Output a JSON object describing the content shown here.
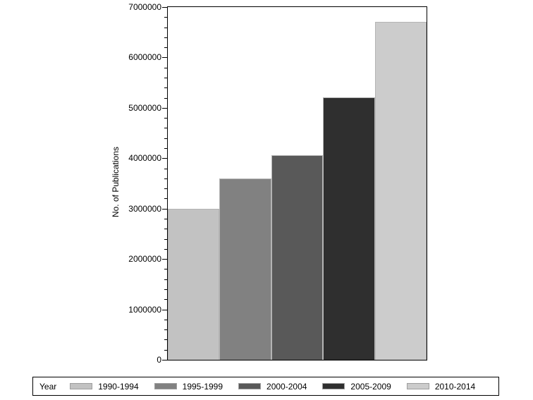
{
  "chart_data": {
    "type": "bar",
    "title": "",
    "xlabel": "",
    "ylabel": "No. of Publications",
    "categories": [
      "1990-1994",
      "1995-1999",
      "2000-2004",
      "2005-2009",
      "2010-2014"
    ],
    "values": [
      3000000,
      3600000,
      4060000,
      5210000,
      6710000
    ],
    "ylim": [
      0,
      7000000
    ],
    "y_major_step": 1000000,
    "y_minor_step": 200000,
    "y_tick_labels": [
      "0",
      "1000000",
      "2000000",
      "3000000",
      "4000000",
      "5000000",
      "6000000",
      "7000000"
    ],
    "grid": false,
    "legend_position": "bottom",
    "legend_title": "Year",
    "bar_colors": [
      "#c2c2c2",
      "#818181",
      "#595959",
      "#2f2f2f",
      "#cccccc"
    ],
    "bar_border_color": "#b4b4b4",
    "swatch_border_color": "#9e9e9e",
    "frame_color": "#000000",
    "background": "#ffffff"
  }
}
